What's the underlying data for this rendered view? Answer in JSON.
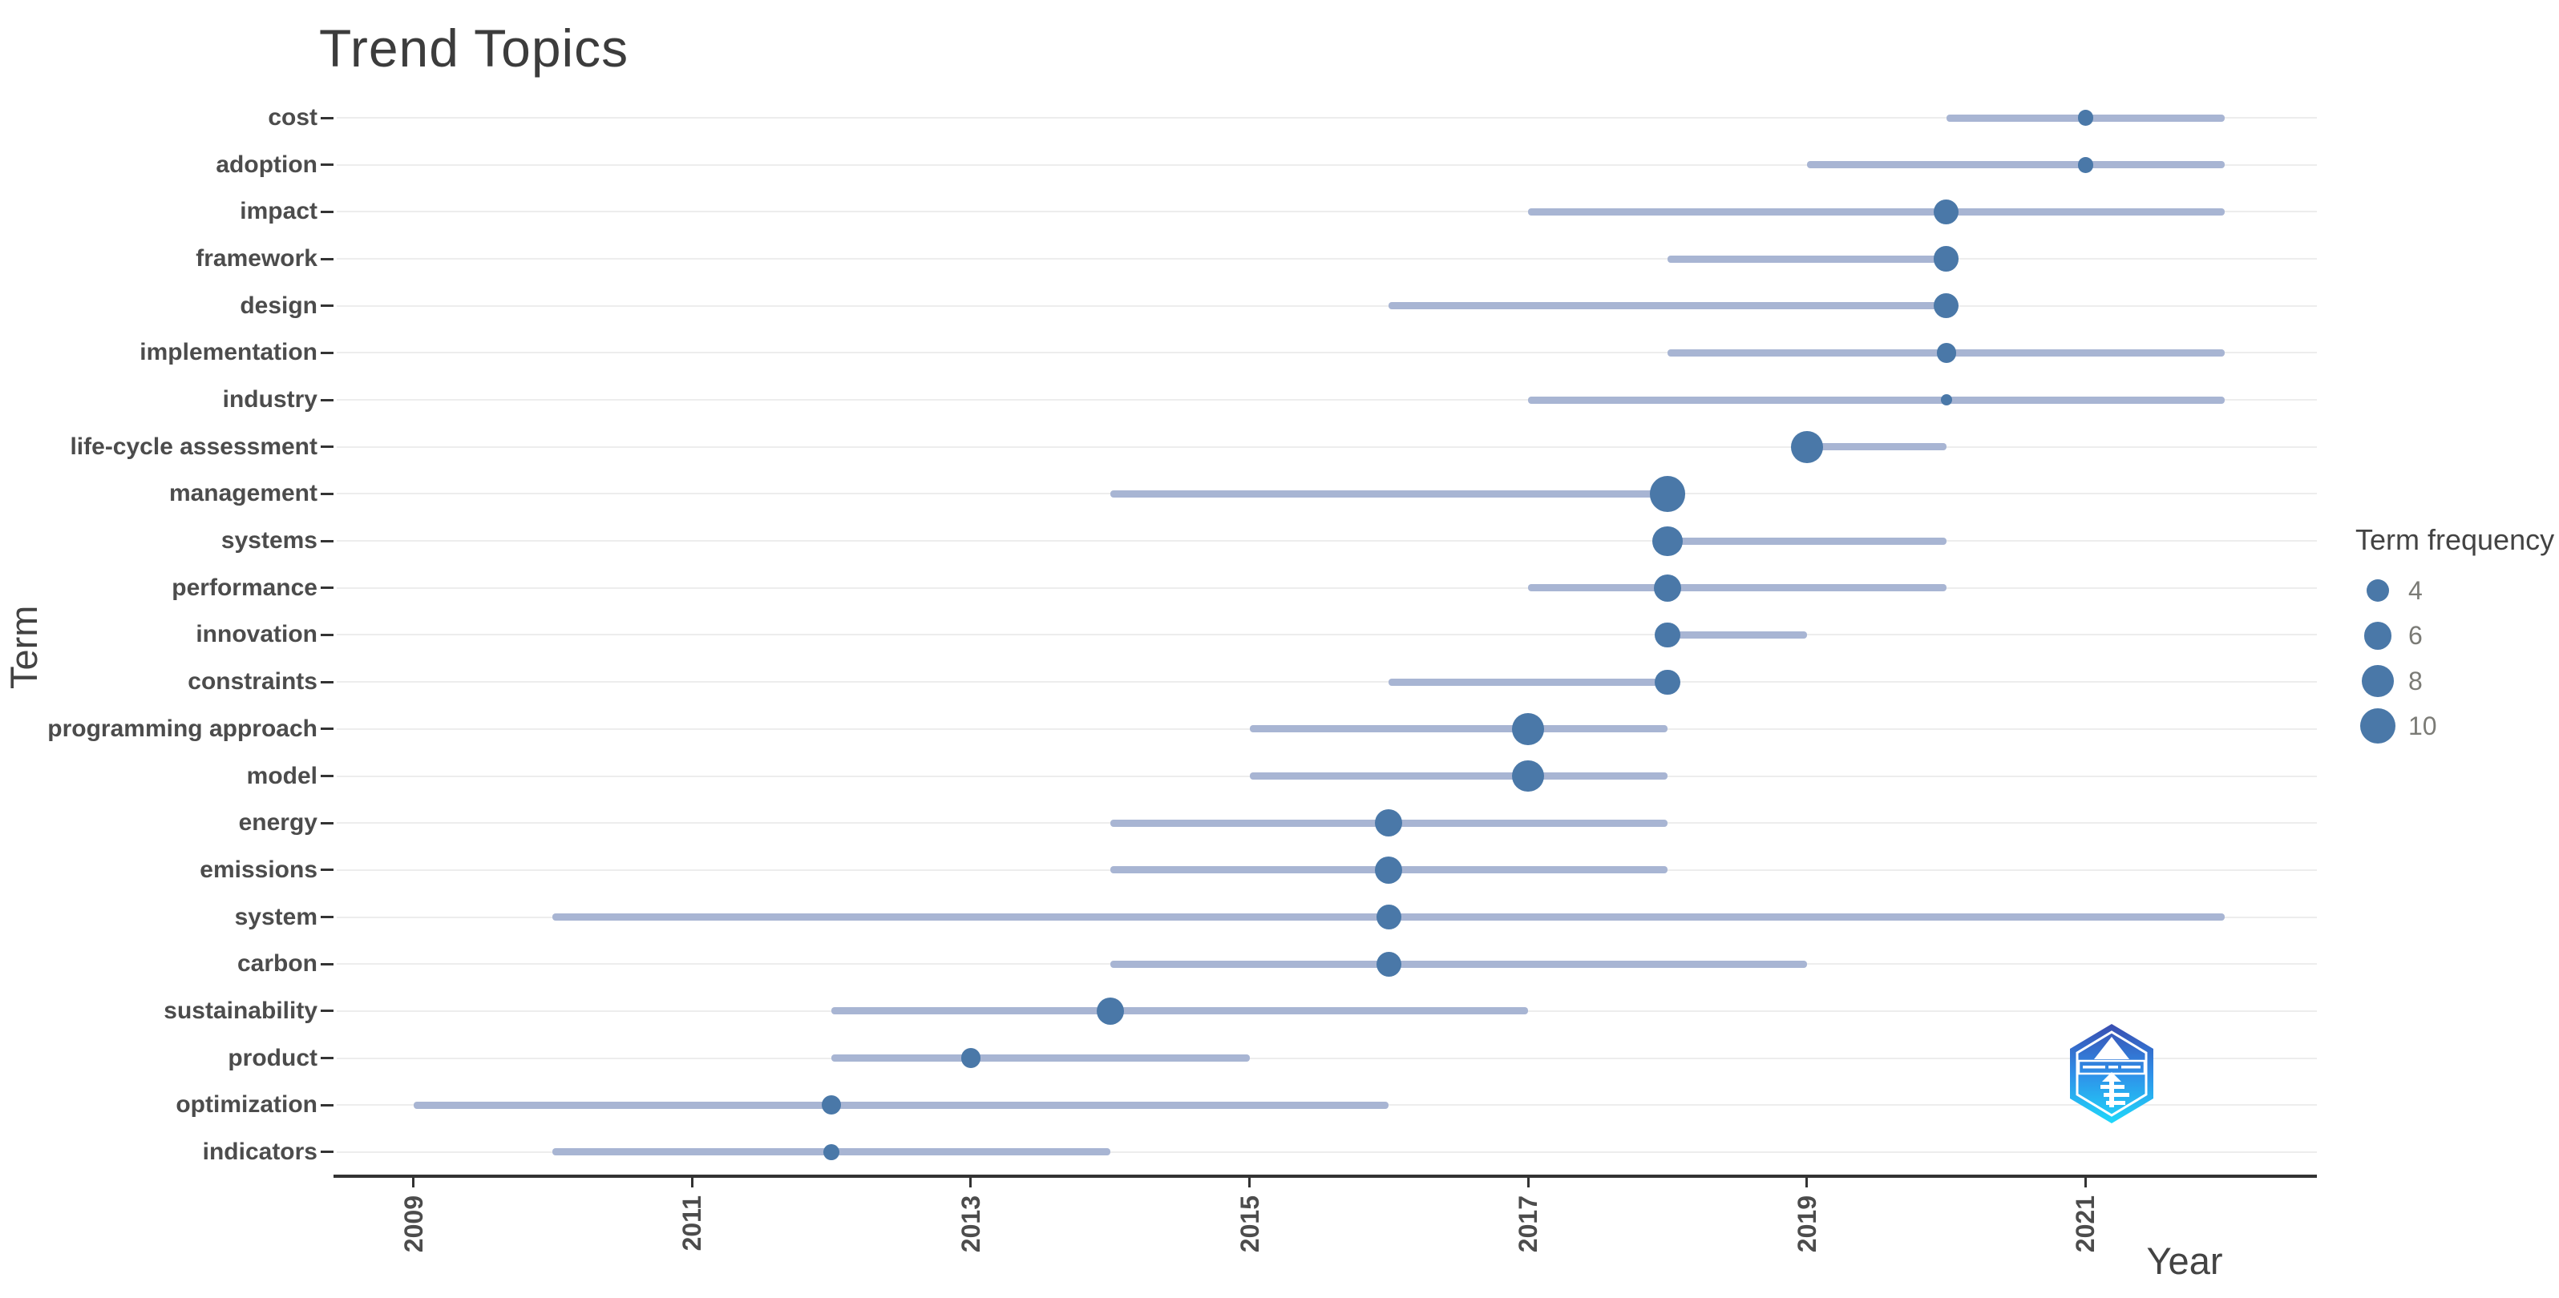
{
  "title": "Trend Topics",
  "axes": {
    "x_title": "Year",
    "y_title": "Term"
  },
  "legend": {
    "title": "Term frequency",
    "entries": [
      {
        "label": "4",
        "value": 4
      },
      {
        "label": "6",
        "value": 6
      },
      {
        "label": "8",
        "value": 8
      },
      {
        "label": "10",
        "value": 10
      }
    ]
  },
  "colors": {
    "dot": "#4a78a8",
    "range_line": "#a8b5d3",
    "gridline": "#ededed",
    "axis_line": "#333333",
    "axis_text": "#4c4c4c",
    "title_text": "#3c3c3c",
    "axis_title_text": "#434343",
    "legend_value_text": "#7b7b76",
    "logo_gradient": [
      "#3a4db0",
      "#2f8fe8",
      "#1fd8fa"
    ]
  },
  "logo": {
    "name": "hexagon-tree-badge",
    "description": "blue hexagonal badge watermark with white tree emblem and banner"
  },
  "chart_data": {
    "type": "scatter",
    "mark": "point-with-horizontal-range",
    "title": "Trend Topics",
    "xlabel": "Year",
    "ylabel": "Term",
    "xlim": [
      2008.45,
      2022.66
    ],
    "x_ticks": [
      "2009",
      "2011",
      "2013",
      "2015",
      "2017",
      "2019",
      "2021"
    ],
    "grid": "horizontal-only",
    "legend_position": "right",
    "size_scale": "area proportional to frequency; diameter_px = 14*sqrt(frequency)",
    "rows": [
      {
        "term": "cost",
        "start": 2020,
        "end": 2022,
        "peak": 2021,
        "frequency": 2
      },
      {
        "term": "adoption",
        "start": 2019,
        "end": 2022,
        "peak": 2021,
        "frequency": 2
      },
      {
        "term": "impact",
        "start": 2017,
        "end": 2022,
        "peak": 2020,
        "frequency": 5
      },
      {
        "term": "framework",
        "start": 2018,
        "end": 2020,
        "peak": 2020,
        "frequency": 5
      },
      {
        "term": "design",
        "start": 2016,
        "end": 2020,
        "peak": 2020,
        "frequency": 5
      },
      {
        "term": "implementation",
        "start": 2018,
        "end": 2022,
        "peak": 2020,
        "frequency": 3
      },
      {
        "term": "industry",
        "start": 2017,
        "end": 2022,
        "peak": 2020,
        "frequency": 1
      },
      {
        "term": "life-cycle assessment",
        "start": 2019,
        "end": 2020,
        "peak": 2019,
        "frequency": 8
      },
      {
        "term": "management",
        "start": 2014,
        "end": 2018,
        "peak": 2018,
        "frequency": 10
      },
      {
        "term": "systems",
        "start": 2018,
        "end": 2020,
        "peak": 2018,
        "frequency": 7
      },
      {
        "term": "performance",
        "start": 2017,
        "end": 2020,
        "peak": 2018,
        "frequency": 6
      },
      {
        "term": "innovation",
        "start": 2018,
        "end": 2019,
        "peak": 2018,
        "frequency": 5
      },
      {
        "term": "constraints",
        "start": 2016,
        "end": 2018,
        "peak": 2018,
        "frequency": 5
      },
      {
        "term": "programming approach",
        "start": 2015,
        "end": 2018,
        "peak": 2017,
        "frequency": 8
      },
      {
        "term": "model",
        "start": 2015,
        "end": 2018,
        "peak": 2017,
        "frequency": 8
      },
      {
        "term": "energy",
        "start": 2014,
        "end": 2018,
        "peak": 2016,
        "frequency": 6
      },
      {
        "term": "emissions",
        "start": 2014,
        "end": 2018,
        "peak": 2016,
        "frequency": 6
      },
      {
        "term": "system",
        "start": 2010,
        "end": 2022,
        "peak": 2016,
        "frequency": 5
      },
      {
        "term": "carbon",
        "start": 2014,
        "end": 2019,
        "peak": 2016,
        "frequency": 5
      },
      {
        "term": "sustainability",
        "start": 2012,
        "end": 2017,
        "peak": 2014,
        "frequency": 6
      },
      {
        "term": "product",
        "start": 2012,
        "end": 2015,
        "peak": 2013,
        "frequency": 3
      },
      {
        "term": "optimization",
        "start": 2009,
        "end": 2016,
        "peak": 2012,
        "frequency": 3
      },
      {
        "term": "indicators",
        "start": 2010,
        "end": 2014,
        "peak": 2012,
        "frequency": 2
      }
    ]
  }
}
